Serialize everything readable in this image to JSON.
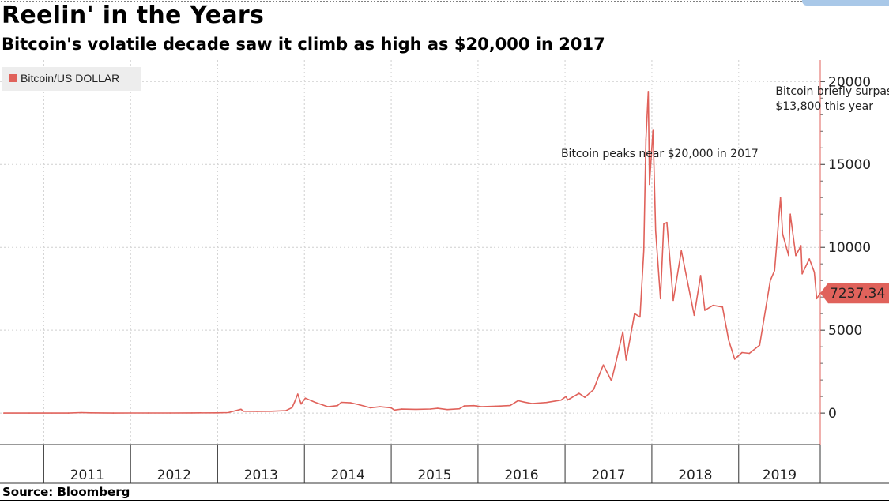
{
  "chart_data": {
    "type": "line",
    "title": "Reelin' in the Years",
    "subtitle": "Bitcoin's volatile decade saw it climb as high as $20,000 in 2017",
    "source": "Source: Bloomberg",
    "legend": {
      "position": "top-left",
      "entries": [
        "Bitcoin/US DOLLAR"
      ]
    },
    "xlabel": "",
    "ylabel": "",
    "x_tick_labels": [
      "2011",
      "2012",
      "2013",
      "2014",
      "2015",
      "2016",
      "2017",
      "2018",
      "2019"
    ],
    "y_ticks": [
      0,
      5000,
      10000,
      15000,
      20000
    ],
    "ylim": [
      -1900,
      21300
    ],
    "xlim": [
      "2010-07-01",
      "2019-12-10"
    ],
    "grid": true,
    "y_axis_side": "right",
    "last_value_label": "7237.34",
    "annotations": [
      {
        "text_lines": [
          "Bitcoin peaks near $20,000 in 2017"
        ],
        "x": "2016-12-15",
        "y": 15450
      },
      {
        "text_lines": [
          "Bitcoin briefly surpasses",
          "$13,800 this year"
        ],
        "x": "2019-06-05",
        "y": 19200
      }
    ],
    "series": [
      {
        "name": "Bitcoin/US DOLLAR",
        "color": "#e0625b",
        "points": [
          [
            "2010-07-17",
            0.05
          ],
          [
            "2010-11-01",
            0.3
          ],
          [
            "2011-02-01",
            1
          ],
          [
            "2011-04-15",
            1.5
          ],
          [
            "2011-06-08",
            30
          ],
          [
            "2011-07-15",
            14
          ],
          [
            "2011-10-20",
            2.5
          ],
          [
            "2011-12-31",
            4.7
          ],
          [
            "2012-03-15",
            5
          ],
          [
            "2012-06-15",
            6.5
          ],
          [
            "2012-09-15",
            12
          ],
          [
            "2012-12-31",
            13.5
          ],
          [
            "2013-02-15",
            27
          ],
          [
            "2013-04-09",
            230
          ],
          [
            "2013-04-20",
            110
          ],
          [
            "2013-06-15",
            100
          ],
          [
            "2013-08-15",
            110
          ],
          [
            "2013-10-15",
            150
          ],
          [
            "2013-11-10",
            330
          ],
          [
            "2013-11-20",
            650
          ],
          [
            "2013-12-04",
            1150
          ],
          [
            "2013-12-18",
            550
          ],
          [
            "2014-01-05",
            900
          ],
          [
            "2014-02-15",
            650
          ],
          [
            "2014-04-10",
            380
          ],
          [
            "2014-05-20",
            450
          ],
          [
            "2014-06-05",
            650
          ],
          [
            "2014-07-15",
            620
          ],
          [
            "2014-08-20",
            500
          ],
          [
            "2014-10-05",
            320
          ],
          [
            "2014-11-15",
            380
          ],
          [
            "2014-12-31",
            320
          ],
          [
            "2015-01-14",
            180
          ],
          [
            "2015-02-15",
            240
          ],
          [
            "2015-04-15",
            225
          ],
          [
            "2015-06-15",
            245
          ],
          [
            "2015-07-15",
            285
          ],
          [
            "2015-08-25",
            210
          ],
          [
            "2015-10-15",
            260
          ],
          [
            "2015-11-04",
            430
          ],
          [
            "2015-12-15",
            450
          ],
          [
            "2016-01-15",
            380
          ],
          [
            "2016-03-15",
            415
          ],
          [
            "2016-05-15",
            455
          ],
          [
            "2016-06-17",
            750
          ],
          [
            "2016-07-15",
            660
          ],
          [
            "2016-08-15",
            575
          ],
          [
            "2016-10-15",
            640
          ],
          [
            "2016-12-15",
            780
          ],
          [
            "2017-01-05",
            1000
          ],
          [
            "2017-01-12",
            790
          ],
          [
            "2017-03-01",
            1190
          ],
          [
            "2017-03-25",
            950
          ],
          [
            "2017-05-01",
            1420
          ],
          [
            "2017-05-25",
            2300
          ],
          [
            "2017-06-11",
            2900
          ],
          [
            "2017-07-15",
            1950
          ],
          [
            "2017-08-05",
            3200
          ],
          [
            "2017-09-01",
            4900
          ],
          [
            "2017-09-15",
            3200
          ],
          [
            "2017-10-20",
            6000
          ],
          [
            "2017-11-12",
            5800
          ],
          [
            "2017-11-28",
            9800
          ],
          [
            "2017-12-07",
            16500
          ],
          [
            "2017-12-17",
            19400
          ],
          [
            "2017-12-22",
            13800
          ],
          [
            "2018-01-06",
            17100
          ],
          [
            "2018-01-17",
            11000
          ],
          [
            "2018-02-06",
            6900
          ],
          [
            "2018-02-20",
            11400
          ],
          [
            "2018-03-05",
            11500
          ],
          [
            "2018-04-01",
            6800
          ],
          [
            "2018-05-05",
            9800
          ],
          [
            "2018-06-28",
            5900
          ],
          [
            "2018-07-25",
            8300
          ],
          [
            "2018-08-12",
            6200
          ],
          [
            "2018-09-15",
            6500
          ],
          [
            "2018-10-25",
            6400
          ],
          [
            "2018-11-20",
            4400
          ],
          [
            "2018-12-15",
            3250
          ],
          [
            "2019-01-15",
            3650
          ],
          [
            "2019-02-15",
            3600
          ],
          [
            "2019-03-30",
            4100
          ],
          [
            "2019-05-14",
            8000
          ],
          [
            "2019-06-01",
            8600
          ],
          [
            "2019-06-26",
            13000
          ],
          [
            "2019-07-05",
            10800
          ],
          [
            "2019-07-30",
            9500
          ],
          [
            "2019-08-06",
            12000
          ],
          [
            "2019-08-29",
            9500
          ],
          [
            "2019-09-20",
            10100
          ],
          [
            "2019-09-25",
            8400
          ],
          [
            "2019-10-25",
            9300
          ],
          [
            "2019-11-15",
            8500
          ],
          [
            "2019-11-25",
            6900
          ],
          [
            "2019-12-10",
            7237.34
          ]
        ]
      }
    ]
  }
}
